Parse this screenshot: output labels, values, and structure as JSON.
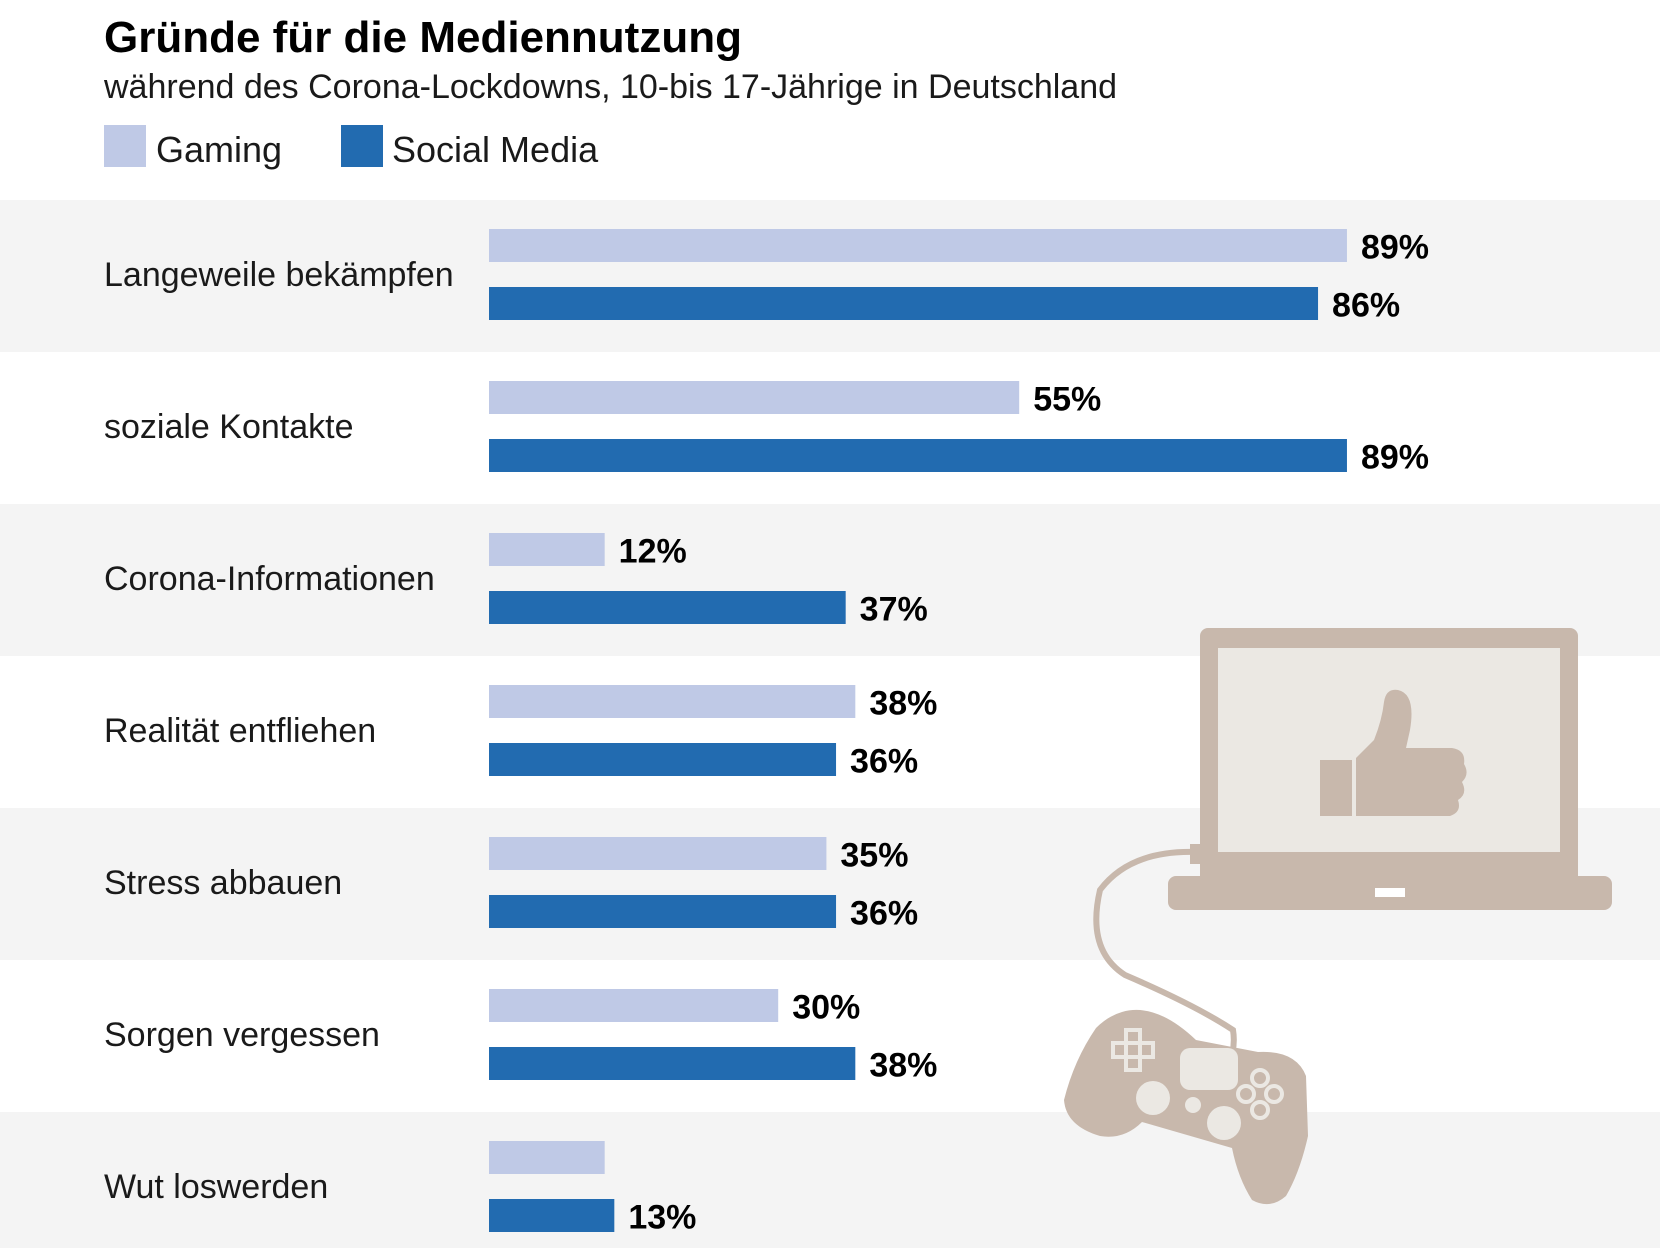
{
  "chart_data": {
    "type": "bar",
    "orientation": "horizontal",
    "title": "Gründe für die Mediennutzung",
    "subtitle": "während des Corona-Lockdowns, 10-bis 17-Jährige in Deutschland",
    "categories": [
      "Langeweile bekämpfen",
      "soziale Kontakte",
      "Corona-Informationen",
      "Realität entfliehen",
      "Stress abbauen",
      "Sorgen vergessen",
      "Wut loswerden"
    ],
    "series": [
      {
        "name": "Gaming",
        "color": "#bfc9e6",
        "values": [
          89,
          55,
          12,
          38,
          35,
          30,
          12
        ],
        "labels": [
          "89%",
          "55%",
          "12%",
          "38%",
          "35%",
          "30%",
          ""
        ]
      },
      {
        "name": "Social Media",
        "color": "#226bb0",
        "values": [
          86,
          89,
          37,
          36,
          36,
          38,
          13
        ],
        "labels": [
          "86%",
          "89%",
          "37%",
          "36%",
          "36%",
          "38%",
          "13%"
        ]
      }
    ],
    "xlim": [
      0,
      100
    ],
    "row_band_color": "#f4f4f4",
    "illustration_color": "#c8b8ac",
    "illustration": "laptop-with-thumbs-up-and-game-controller",
    "legend_placement": "top-left",
    "grid": false
  }
}
